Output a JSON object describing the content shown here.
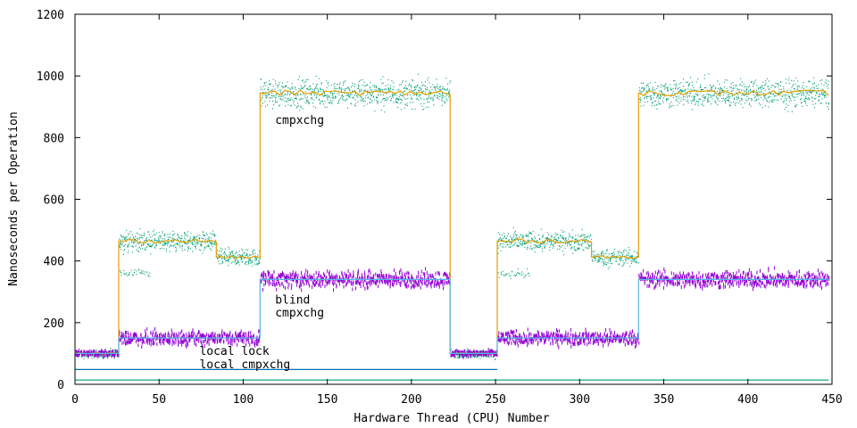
{
  "chart_data": {
    "type": "scatter",
    "xlabel": "Hardware Thread (CPU) Number",
    "ylabel": "Nanoseconds per Operation",
    "xlim": [
      0,
      450
    ],
    "ylim": [
      0,
      1200
    ],
    "xticks": [
      0,
      50,
      100,
      150,
      200,
      250,
      300,
      350,
      400,
      450
    ],
    "yticks": [
      0,
      200,
      400,
      600,
      800,
      1000,
      1200
    ],
    "grid": false,
    "legend": "none",
    "annotations": [
      {
        "text": "cmpxchg",
        "x": 119,
        "y": 845
      },
      {
        "text": "blind",
        "x": 119,
        "y": 262
      },
      {
        "text": "cmpxchg",
        "x": 119,
        "y": 220
      },
      {
        "text": "local lock",
        "x": 74,
        "y": 95
      },
      {
        "text": "local cmpxchg",
        "x": 74,
        "y": 52
      }
    ],
    "series": [
      {
        "kind": "cmpxchg",
        "color": "#009e73",
        "line_color": "#e69f00",
        "points_style": "dots",
        "segments": [
          {
            "x": [
              0,
              26
            ],
            "y": 100,
            "spread": 15
          },
          {
            "x": [
              26,
              84
            ],
            "y": 465,
            "spread": 35,
            "secondary": {
              "x": [
                26,
                45
              ],
              "y": 360,
              "spread": 15
            }
          },
          {
            "x": [
              84,
              110
            ],
            "y": 412,
            "spread": 30
          },
          {
            "x": [
              110,
              223
            ],
            "y": 945,
            "spread": 50
          },
          {
            "x": [
              223,
              251
            ],
            "y": 100,
            "spread": 15
          },
          {
            "x": [
              251,
              307
            ],
            "y": 465,
            "spread": 35,
            "secondary": {
              "x": [
                251,
                270
              ],
              "y": 360,
              "spread": 15
            }
          },
          {
            "x": [
              307,
              335
            ],
            "y": 412,
            "spread": 30
          },
          {
            "x": [
              335,
              448
            ],
            "y": 945,
            "spread": 50
          }
        ]
      },
      {
        "kind": "blind cmpxchg",
        "color": "#9400d3",
        "line_color": "#56b4e9",
        "points_style": "dashes",
        "segments": [
          {
            "x": [
              0,
              26
            ],
            "y": 100,
            "spread": 10
          },
          {
            "x": [
              26,
              110
            ],
            "y": 150,
            "spread": 25
          },
          {
            "x": [
              110,
              223
            ],
            "y": 340,
            "spread": 30
          },
          {
            "x": [
              223,
              251
            ],
            "y": 100,
            "spread": 10
          },
          {
            "x": [
              251,
              335
            ],
            "y": 150,
            "spread": 25
          },
          {
            "x": [
              335,
              448
            ],
            "y": 340,
            "spread": 30
          }
        ]
      },
      {
        "kind": "local lock",
        "color": "#0072b2",
        "line_color": "#0072b2",
        "points_style": "line",
        "segments": [
          {
            "x": [
              0,
              26
            ],
            "y": 48,
            "spread": 3
          },
          {
            "x": [
              26,
              223
            ],
            "y": 48,
            "spread": 0
          },
          {
            "x": [
              223,
              251
            ],
            "y": 48,
            "spread": 3
          }
        ]
      },
      {
        "kind": "local cmpxchg",
        "color": "#009e73",
        "line_color": "#009e73",
        "points_style": "line",
        "segments": [
          {
            "x": [
              0,
              448
            ],
            "y": 14,
            "spread": 0
          }
        ]
      }
    ]
  }
}
